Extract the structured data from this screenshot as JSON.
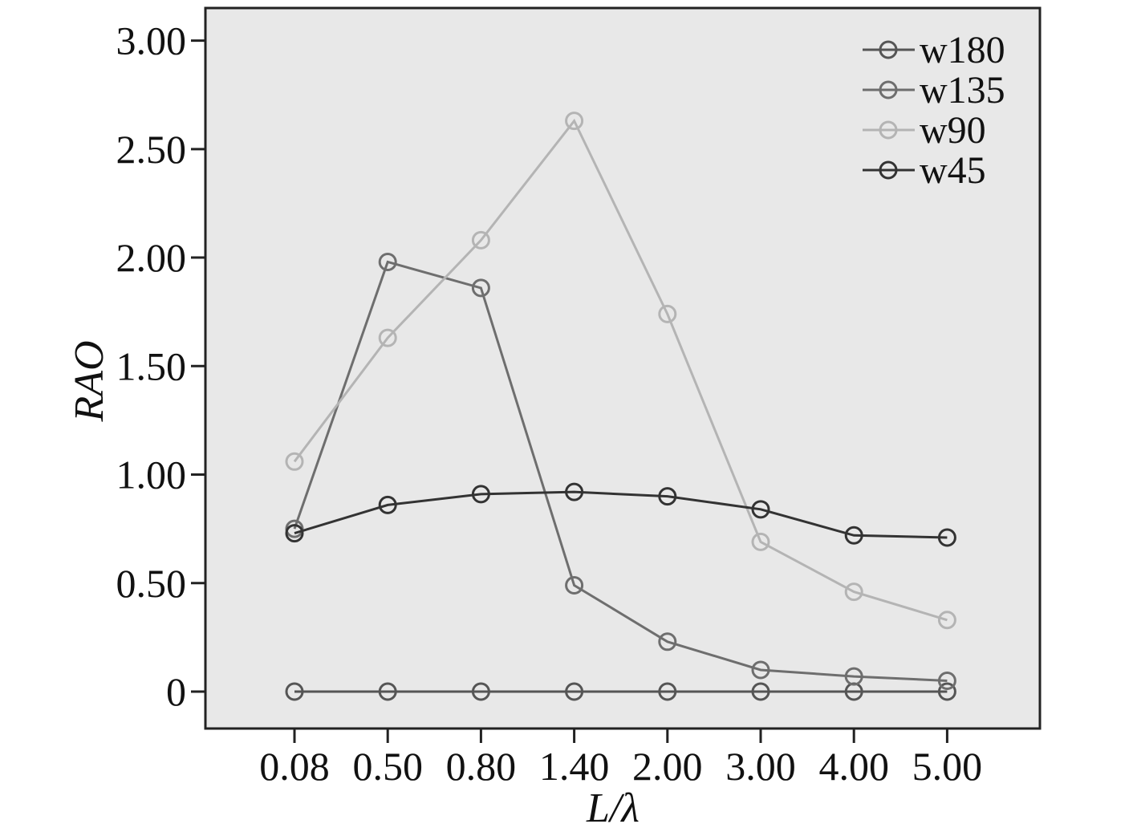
{
  "chart_data": {
    "type": "line",
    "title": "",
    "xlabel": "L/λ",
    "ylabel": "RAO",
    "categories": [
      "0.08",
      "0.50",
      "0.80",
      "1.40",
      "2.00",
      "3.00",
      "4.00",
      "5.00"
    ],
    "ylim": [
      -0.17,
      3.15
    ],
    "yticks": [
      {
        "value": 0,
        "label": "0"
      },
      {
        "value": 0.5,
        "label": "0.50"
      },
      {
        "value": 1.0,
        "label": "1.00"
      },
      {
        "value": 1.5,
        "label": "1.50"
      },
      {
        "value": 2.0,
        "label": "2.00"
      },
      {
        "value": 2.5,
        "label": "2.50"
      },
      {
        "value": 3.0,
        "label": "3.00"
      }
    ],
    "grid": false,
    "legend_position": "top-right",
    "background": "#e8e8e8",
    "series": [
      {
        "name": "w180",
        "color": "#555555",
        "values": [
          0,
          0,
          0,
          0,
          0,
          0,
          0,
          0
        ]
      },
      {
        "name": "w135",
        "color": "#6e6e6e",
        "values": [
          0.75,
          1.98,
          1.86,
          0.49,
          0.23,
          0.1,
          0.07,
          0.05
        ]
      },
      {
        "name": "w90",
        "color": "#b4b4b4",
        "values": [
          1.06,
          1.63,
          2.08,
          2.63,
          1.74,
          0.69,
          0.46,
          0.33
        ]
      },
      {
        "name": "w45",
        "color": "#333333",
        "values": [
          0.73,
          0.86,
          0.91,
          0.92,
          0.9,
          0.84,
          0.72,
          0.71
        ]
      }
    ]
  }
}
